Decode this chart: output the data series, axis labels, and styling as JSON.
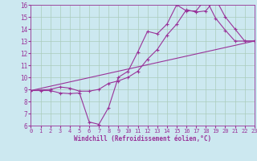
{
  "bg_color": "#cce8f0",
  "grid_color": "#aaccbb",
  "line_color": "#993399",
  "xlim": [
    0,
    23
  ],
  "ylim": [
    6,
    16
  ],
  "xticks": [
    0,
    1,
    2,
    3,
    4,
    5,
    6,
    7,
    8,
    9,
    10,
    11,
    12,
    13,
    14,
    15,
    16,
    17,
    18,
    19,
    20,
    21,
    22,
    23
  ],
  "yticks": [
    6,
    7,
    8,
    9,
    10,
    11,
    12,
    13,
    14,
    15,
    16
  ],
  "xlabel": "Windchill (Refroidissement éolien,°C)",
  "line1_x": [
    0,
    1,
    2,
    3,
    4,
    5,
    6,
    7,
    8,
    9,
    10,
    11,
    12,
    13,
    14,
    15,
    16,
    17,
    18,
    19,
    20,
    21,
    22,
    23
  ],
  "line1_y": [
    8.9,
    8.9,
    8.9,
    8.7,
    8.65,
    8.7,
    6.3,
    6.1,
    7.5,
    10.0,
    10.5,
    12.1,
    13.8,
    13.6,
    14.4,
    16.0,
    15.5,
    15.5,
    16.5,
    14.9,
    13.9,
    13.0,
    13.0,
    13.0
  ],
  "line2_x": [
    0,
    2,
    3,
    4,
    5,
    6,
    7,
    8,
    9,
    10,
    11,
    12,
    13,
    14,
    15,
    16,
    17,
    18,
    19,
    20,
    21,
    22,
    23
  ],
  "line2_y": [
    8.9,
    9.0,
    9.2,
    9.1,
    8.85,
    8.85,
    9.0,
    9.5,
    9.7,
    10.0,
    10.5,
    11.5,
    12.3,
    13.5,
    14.4,
    15.6,
    15.4,
    15.5,
    16.5,
    15.0,
    14.0,
    13.0,
    13.0
  ],
  "line3_x": [
    0,
    23
  ],
  "line3_y": [
    8.9,
    13.0
  ]
}
